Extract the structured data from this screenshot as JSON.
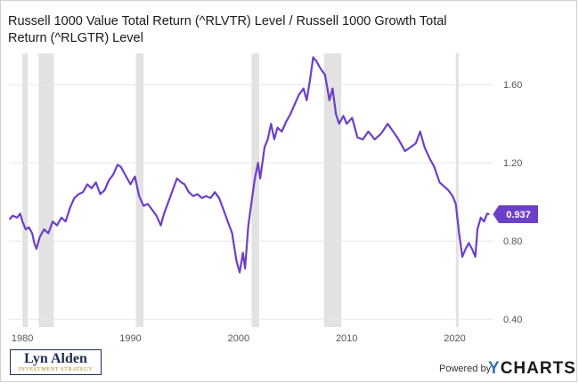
{
  "page": {
    "title": "Russell 1000 Value Total Return (^RLVTR) Level / Russell 1000 Growth Total Return (^RLGTR) Level",
    "attribution": {
      "logo_name": "Lyn Alden",
      "logo_sub": "INVESTMENT STRATEGY",
      "powered_by": "Powered by",
      "brand_y": "Y",
      "brand_rest": "CHARTS"
    }
  },
  "colors": {
    "line": "#6c3fc9",
    "recession": "#e2e2e2",
    "gridline": "#e6e6e6",
    "label_bg": "#6c3fc9"
  },
  "chart_data": {
    "type": "line",
    "title": "Russell 1000 Value Total Return (^RLVTR) Level / Russell 1000 Growth Total Return (^RLGTR) Level",
    "xlabel": "",
    "ylabel": "",
    "xlim": [
      1978.75,
      2023.5
    ],
    "ylim": [
      0.36,
      1.76
    ],
    "x_ticks": [
      1980,
      1990,
      2000,
      2010,
      2020
    ],
    "y_ticks": [
      0.4,
      0.8,
      1.2,
      1.6
    ],
    "y_tick_labels": [
      "0.40",
      "0.80",
      "1.20",
      "1.60"
    ],
    "grid": "horizontal",
    "last_value_label": "0.937",
    "recessions": [
      [
        1980.0,
        1980.5
      ],
      [
        1981.5,
        1982.9
      ],
      [
        1990.5,
        1991.2
      ],
      [
        2001.2,
        2001.9
      ],
      [
        2007.9,
        2009.5
      ],
      [
        2020.1,
        2020.35
      ]
    ],
    "series": [
      {
        "points": [
          [
            1978.8,
            0.91
          ],
          [
            1979.1,
            0.93
          ],
          [
            1979.5,
            0.92
          ],
          [
            1979.8,
            0.94
          ],
          [
            1980.0,
            0.9
          ],
          [
            1980.3,
            0.86
          ],
          [
            1980.6,
            0.87
          ],
          [
            1980.9,
            0.84
          ],
          [
            1981.1,
            0.79
          ],
          [
            1981.3,
            0.76
          ],
          [
            1981.6,
            0.82
          ],
          [
            1982.0,
            0.86
          ],
          [
            1982.4,
            0.84
          ],
          [
            1982.8,
            0.9
          ],
          [
            1983.2,
            0.88
          ],
          [
            1983.6,
            0.92
          ],
          [
            1984.0,
            0.9
          ],
          [
            1984.4,
            0.97
          ],
          [
            1984.8,
            1.02
          ],
          [
            1985.2,
            1.04
          ],
          [
            1985.6,
            1.05
          ],
          [
            1986.0,
            1.09
          ],
          [
            1986.4,
            1.07
          ],
          [
            1986.8,
            1.1
          ],
          [
            1987.2,
            1.04
          ],
          [
            1987.6,
            1.06
          ],
          [
            1988.0,
            1.11
          ],
          [
            1988.4,
            1.14
          ],
          [
            1988.8,
            1.19
          ],
          [
            1989.1,
            1.18
          ],
          [
            1989.5,
            1.14
          ],
          [
            1990.0,
            1.09
          ],
          [
            1990.4,
            1.13
          ],
          [
            1990.8,
            1.03
          ],
          [
            1991.2,
            0.98
          ],
          [
            1991.6,
            0.99
          ],
          [
            1992.0,
            0.96
          ],
          [
            1992.4,
            0.93
          ],
          [
            1992.8,
            0.88
          ],
          [
            1993.1,
            0.94
          ],
          [
            1993.5,
            1.0
          ],
          [
            1993.9,
            1.06
          ],
          [
            1994.3,
            1.12
          ],
          [
            1994.7,
            1.1
          ],
          [
            1995.0,
            1.09
          ],
          [
            1995.4,
            1.05
          ],
          [
            1995.8,
            1.03
          ],
          [
            1996.2,
            1.04
          ],
          [
            1996.6,
            1.02
          ],
          [
            1997.0,
            1.03
          ],
          [
            1997.4,
            1.02
          ],
          [
            1997.8,
            1.05
          ],
          [
            1998.2,
            1.02
          ],
          [
            1998.6,
            0.96
          ],
          [
            1999.0,
            0.9
          ],
          [
            1999.4,
            0.84
          ],
          [
            1999.8,
            0.7
          ],
          [
            2000.1,
            0.64
          ],
          [
            2000.4,
            0.74
          ],
          [
            2000.6,
            0.66
          ],
          [
            2000.9,
            0.88
          ],
          [
            2001.2,
            1.0
          ],
          [
            2001.5,
            1.12
          ],
          [
            2001.8,
            1.2
          ],
          [
            2002.0,
            1.12
          ],
          [
            2002.4,
            1.28
          ],
          [
            2002.7,
            1.32
          ],
          [
            2003.0,
            1.4
          ],
          [
            2003.3,
            1.32
          ],
          [
            2003.6,
            1.38
          ],
          [
            2004.0,
            1.36
          ],
          [
            2004.4,
            1.41
          ],
          [
            2004.8,
            1.45
          ],
          [
            2005.2,
            1.5
          ],
          [
            2005.6,
            1.55
          ],
          [
            2006.0,
            1.58
          ],
          [
            2006.3,
            1.52
          ],
          [
            2006.6,
            1.62
          ],
          [
            2006.9,
            1.74
          ],
          [
            2007.2,
            1.72
          ],
          [
            2007.6,
            1.68
          ],
          [
            2008.0,
            1.65
          ],
          [
            2008.4,
            1.52
          ],
          [
            2008.7,
            1.58
          ],
          [
            2009.0,
            1.45
          ],
          [
            2009.3,
            1.4
          ],
          [
            2009.7,
            1.44
          ],
          [
            2010.0,
            1.4
          ],
          [
            2010.5,
            1.43
          ],
          [
            2011.0,
            1.33
          ],
          [
            2011.5,
            1.32
          ],
          [
            2012.0,
            1.36
          ],
          [
            2012.6,
            1.32
          ],
          [
            2013.2,
            1.35
          ],
          [
            2013.8,
            1.4
          ],
          [
            2014.3,
            1.36
          ],
          [
            2014.8,
            1.32
          ],
          [
            2015.4,
            1.26
          ],
          [
            2015.9,
            1.28
          ],
          [
            2016.4,
            1.3
          ],
          [
            2016.8,
            1.36
          ],
          [
            2017.2,
            1.28
          ],
          [
            2017.7,
            1.22
          ],
          [
            2018.1,
            1.18
          ],
          [
            2018.6,
            1.1
          ],
          [
            2019.0,
            1.08
          ],
          [
            2019.4,
            1.06
          ],
          [
            2019.8,
            1.03
          ],
          [
            2020.1,
            0.99
          ],
          [
            2020.4,
            0.84
          ],
          [
            2020.7,
            0.72
          ],
          [
            2021.0,
            0.76
          ],
          [
            2021.3,
            0.79
          ],
          [
            2021.6,
            0.76
          ],
          [
            2021.9,
            0.72
          ],
          [
            2022.1,
            0.86
          ],
          [
            2022.4,
            0.92
          ],
          [
            2022.7,
            0.9
          ],
          [
            2023.0,
            0.94
          ],
          [
            2023.2,
            0.937
          ]
        ]
      }
    ]
  }
}
